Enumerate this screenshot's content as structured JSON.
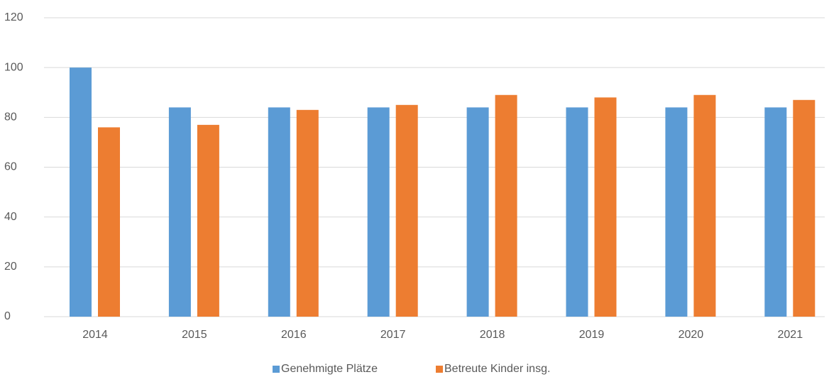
{
  "chart_data": {
    "type": "bar",
    "categories": [
      "2014",
      "2015",
      "2016",
      "2017",
      "2018",
      "2019",
      "2020",
      "2021"
    ],
    "series": [
      {
        "name": "Genehmigte Plätze",
        "color": "#5b9bd5",
        "values": [
          100,
          84,
          84,
          84,
          84,
          84,
          84,
          84
        ]
      },
      {
        "name": "Betreute Kinder insg.",
        "color": "#ed7d31",
        "values": [
          76,
          77,
          83,
          85,
          89,
          88,
          89,
          87
        ]
      }
    ],
    "ylim": [
      0,
      120
    ],
    "yticks": [
      0,
      20,
      40,
      60,
      80,
      100,
      120
    ],
    "grid": true,
    "legend": "bottom"
  }
}
